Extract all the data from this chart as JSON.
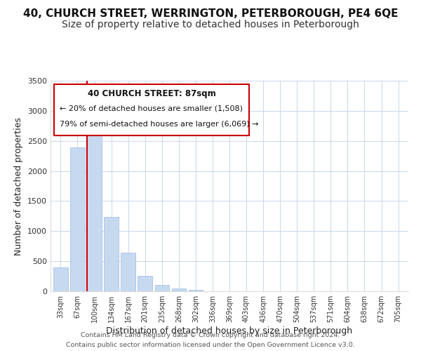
{
  "title": "40, CHURCH STREET, WERRINGTON, PETERBOROUGH, PE4 6QE",
  "subtitle": "Size of property relative to detached houses in Peterborough",
  "xlabel": "Distribution of detached houses by size in Peterborough",
  "ylabel": "Number of detached properties",
  "bar_labels": [
    "33sqm",
    "67sqm",
    "100sqm",
    "134sqm",
    "167sqm",
    "201sqm",
    "235sqm",
    "268sqm",
    "302sqm",
    "336sqm",
    "369sqm",
    "403sqm",
    "436sqm",
    "470sqm",
    "504sqm",
    "537sqm",
    "571sqm",
    "604sqm",
    "638sqm",
    "672sqm",
    "705sqm"
  ],
  "bar_values": [
    400,
    2390,
    2600,
    1240,
    640,
    260,
    100,
    50,
    20,
    0,
    0,
    0,
    0,
    0,
    0,
    0,
    0,
    0,
    0,
    0,
    0
  ],
  "bar_color": "#c6d9f1",
  "bar_edge_color": "#9ab8e0",
  "vline_color": "#cc0000",
  "ylim": [
    0,
    3500
  ],
  "annotation_title": "40 CHURCH STREET: 87sqm",
  "annotation_line1": "← 20% of detached houses are smaller (1,508)",
  "annotation_line2": "79% of semi-detached houses are larger (6,069) →",
  "annotation_box_color": "#ffffff",
  "annotation_box_edge": "#cc0000",
  "footer1": "Contains HM Land Registry data © Crown copyright and database right 2024.",
  "footer2": "Contains public sector information licensed under the Open Government Licence v3.0.",
  "background_color": "#ffffff",
  "grid_color": "#c8d8ec",
  "title_fontsize": 11,
  "subtitle_fontsize": 10,
  "yticks": [
    0,
    500,
    1000,
    1500,
    2000,
    2500,
    3000,
    3500
  ]
}
